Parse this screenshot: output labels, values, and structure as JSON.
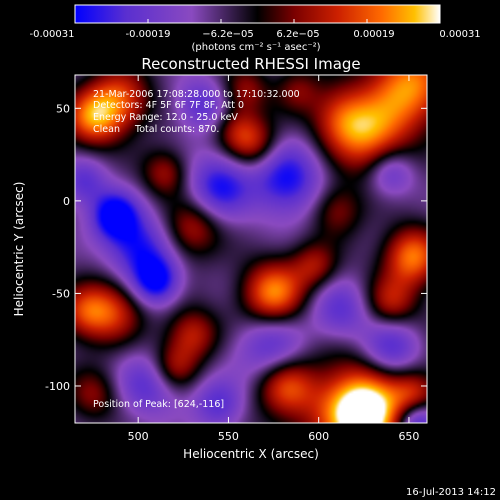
{
  "chart_data": {
    "type": "heatmap",
    "title": "Reconstructed RHESSI Image",
    "xlabel": "Heliocentric X (arcsec)",
    "ylabel": "Heliocentric Y (arcsec)",
    "xlim": [
      465,
      660
    ],
    "ylim": [
      -120,
      68
    ],
    "x_ticks": [
      500,
      550,
      600,
      650
    ],
    "y_ticks": [
      50,
      0,
      -50,
      -100
    ],
    "colorbar": {
      "range": [
        -0.00031,
        0.00031
      ],
      "tick_values": [
        -0.00031,
        -0.00019,
        -6.2e-05,
        6.2e-05,
        0.00019,
        0.00031
      ],
      "tick_labels": [
        "-0.00031",
        "-0.00019",
        "−6.2e−05",
        "6.2e−05",
        "0.00019",
        "0.00031"
      ],
      "units_label": "(photons cm⁻² s⁻¹ asec⁻²)",
      "colors": [
        "#0000ff",
        "#5a2fd0",
        "#8a4ac0",
        "#000000",
        "#7a0000",
        "#cc2000",
        "#ff6a00",
        "#ffc000",
        "#ffffff"
      ]
    },
    "blobs": [
      {
        "x": 625,
        "y": -115,
        "v": 1.25,
        "s": 14
      },
      {
        "x": 622,
        "y": -110,
        "v": 0.45,
        "s": 32
      },
      {
        "x": 650,
        "y": 62,
        "v": 0.95,
        "s": 16
      },
      {
        "x": 628,
        "y": 35,
        "v": 0.8,
        "s": 15
      },
      {
        "x": 612,
        "y": 45,
        "v": 0.55,
        "s": 12
      },
      {
        "x": 475,
        "y": 45,
        "v": 0.85,
        "s": 11
      },
      {
        "x": 490,
        "y": 55,
        "v": 0.7,
        "s": 12
      },
      {
        "x": 560,
        "y": 60,
        "v": 0.45,
        "s": 9
      },
      {
        "x": 588,
        "y": 60,
        "v": 0.4,
        "s": 9
      },
      {
        "x": 565,
        "y": 30,
        "v": 0.55,
        "s": 10
      },
      {
        "x": 555,
        "y": 38,
        "v": 0.45,
        "s": 9
      },
      {
        "x": 515,
        "y": 15,
        "v": 0.5,
        "s": 9
      },
      {
        "x": 530,
        "y": -15,
        "v": 0.55,
        "s": 11
      },
      {
        "x": 610,
        "y": -5,
        "v": 0.45,
        "s": 10
      },
      {
        "x": 575,
        "y": -50,
        "v": 0.95,
        "s": 12
      },
      {
        "x": 598,
        "y": -35,
        "v": 0.5,
        "s": 9
      },
      {
        "x": 652,
        "y": -30,
        "v": 0.9,
        "s": 11
      },
      {
        "x": 640,
        "y": -55,
        "v": 0.55,
        "s": 10
      },
      {
        "x": 485,
        "y": -60,
        "v": 0.65,
        "s": 12
      },
      {
        "x": 470,
        "y": -60,
        "v": 0.55,
        "s": 10
      },
      {
        "x": 530,
        "y": -72,
        "v": 0.6,
        "s": 10
      },
      {
        "x": 520,
        "y": -90,
        "v": 0.5,
        "s": 9
      },
      {
        "x": 582,
        "y": -100,
        "v": 0.7,
        "s": 11
      },
      {
        "x": 475,
        "y": -105,
        "v": 0.45,
        "s": 10
      },
      {
        "x": 653,
        "y": -105,
        "v": 0.5,
        "s": 9
      },
      {
        "x": 487,
        "y": -8,
        "v": -0.95,
        "s": 9
      },
      {
        "x": 500,
        "y": -25,
        "v": -0.7,
        "s": 12
      },
      {
        "x": 510,
        "y": -43,
        "v": -0.85,
        "s": 9
      },
      {
        "x": 545,
        "y": 8,
        "v": -0.7,
        "s": 12
      },
      {
        "x": 582,
        "y": 12,
        "v": -0.75,
        "s": 14
      },
      {
        "x": 612,
        "y": -60,
        "v": -0.6,
        "s": 12
      },
      {
        "x": 640,
        "y": -80,
        "v": -0.75,
        "s": 12
      },
      {
        "x": 655,
        "y": -120,
        "v": -0.95,
        "s": 9
      },
      {
        "x": 575,
        "y": -80,
        "v": -0.6,
        "s": 14
      },
      {
        "x": 505,
        "y": -100,
        "v": -0.5,
        "s": 12
      },
      {
        "x": 545,
        "y": -110,
        "v": -0.55,
        "s": 10
      },
      {
        "x": 640,
        "y": 15,
        "v": -0.5,
        "s": 9
      },
      {
        "x": 470,
        "y": 10,
        "v": -0.5,
        "s": 9
      },
      {
        "x": 535,
        "y": 52,
        "v": -0.5,
        "s": 10
      }
    ]
  },
  "annotations": {
    "line1": "21-Mar-2006 17:08:28.000 to 17:10:32.000",
    "line2": "Detectors: 4F 5F 6F 7F 8F, Att 0",
    "line3": "Energy Range: 12.0 - 25.0 keV",
    "line4": "Clean     Total counts: 870.",
    "peak": "Position of Peak: [624,-116]"
  },
  "timestamp": "16-Jul-2013 14:12"
}
